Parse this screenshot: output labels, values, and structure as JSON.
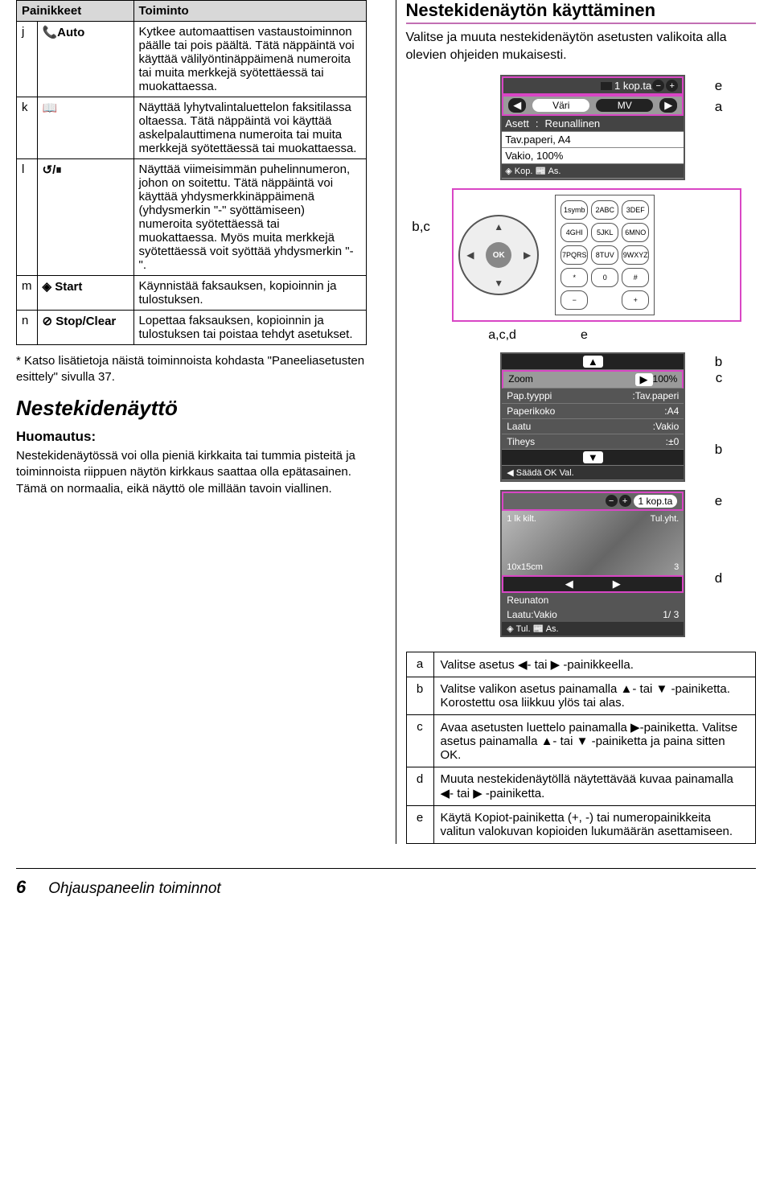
{
  "left_table": {
    "headers": [
      "Painikkeet",
      "Toiminto"
    ],
    "rows": [
      {
        "key": "j",
        "icon": "📞Auto",
        "desc": "Kytkee automaattisen vastaustoiminnon päälle tai pois päältä. Tätä näppäintä voi käyttää välilyöntinäppäimenä numeroita tai muita merkkejä syötettäessä tai muokattaessa."
      },
      {
        "key": "k",
        "icon": "📖",
        "desc": "Näyttää lyhytvalintaluettelon faksitilassa oltaessa. Tätä näppäintä voi käyttää askelpalauttimena numeroita tai muita merkkejä syötettäessä tai muokattaessa."
      },
      {
        "key": "l",
        "icon": "↺/⏸",
        "desc": "Näyttää viimeisimmän puhelinnumeron, johon on soitettu. Tätä näppäintä voi käyttää yhdysmerkkinäppäimenä (yhdysmerkin \"-\" syöttämiseen) numeroita syötettäessä tai muokattaessa. Myös muita merkkejä syötettäessä voit syöttää yhdysmerkin \"-\"."
      },
      {
        "key": "m",
        "icon": "◈ Start",
        "desc": "Käynnistää faksauksen, kopioinnin ja tulostuksen."
      },
      {
        "key": "n",
        "icon": "⊘ Stop/Clear",
        "desc": "Lopettaa faksauksen, kopioinnin ja tulostuksen tai poistaa tehdyt asetukset."
      }
    ]
  },
  "footnote": "* Katso lisätietoja näistä toiminnoista kohdasta \"Paneeliasetusten esittely\" sivulla 37.",
  "section_lcd_title": "Nestekidenäyttö",
  "note_label": "Huomautus:",
  "note_text": "Nestekidenäytössä voi olla pieniä kirkkaita tai tummia pisteitä ja toiminnoista riippuen näytön kirkkaus saattaa olla epätasainen. Tämä on normaalia, eikä näyttö ole millään tavoin viallinen.",
  "right_title": "Nestekidenäytön käyttäminen",
  "right_intro": "Valitse ja muuta nestekidenäytön asetusten valikoita alla olevien ohjeiden mukaisesti.",
  "callouts": {
    "e1": "e",
    "a1": "a",
    "bc": "b,c",
    "acd": "a,c,d",
    "e2": "e",
    "b": "b",
    "c": "c",
    "b2": "b",
    "e3": "e",
    "d": "d"
  },
  "lcd1": {
    "copies": "1 kop.ta",
    "tab_left": "Väri",
    "tab_right": "MV",
    "asett": "Asett",
    "asett_val": "Reunallinen",
    "paper": "Tav.paperi, A4",
    "zoom": "Vakio, 100%",
    "footer": "◈ Kop. 📰 As."
  },
  "keypad": [
    "1symb",
    "2ABC",
    "3DEF",
    "4GHI",
    "5JKL",
    "6MNO",
    "7PQRS",
    "8TUV",
    "9WXYZ",
    "*",
    "0",
    "#"
  ],
  "keypad_extra_left": "−",
  "keypad_extra_right": "+",
  "ok_label": "OK",
  "lcd2": {
    "zoom_lbl": "Zoom",
    "zoom_val": "100%",
    "rows": [
      [
        "Pap.tyyppi",
        "Tav.paperi"
      ],
      [
        "Paperikoko",
        "A4"
      ],
      [
        "Laatu",
        "Vakio"
      ],
      [
        "Tiheys",
        "±0"
      ]
    ],
    "footer": "◀ Säädä OK Val."
  },
  "lcd3": {
    "copies": "1 kop.ta",
    "t1": "1 lk kilt.",
    "t2": "Tul.yht.",
    "t3": "10x15cm",
    "t4": "3",
    "line1": "Reunaton",
    "line2_l": "Laatu:Vakio",
    "line2_r": "1/ 3",
    "footer": "◈ Tul. 📰 As."
  },
  "instructions": [
    {
      "k": "a",
      "t": "Valitse asetus ◀- tai ▶ -painikkeella."
    },
    {
      "k": "b",
      "t": "Valitse valikon asetus painamalla ▲- tai ▼ -painiketta. Korostettu osa liikkuu ylös tai alas."
    },
    {
      "k": "c",
      "t": "Avaa asetusten luettelo painamalla ▶-painiketta. Valitse asetus painamalla ▲- tai ▼ -painiketta ja paina sitten OK."
    },
    {
      "k": "d",
      "t": "Muuta nestekidenäytöllä näytettävää kuvaa painamalla ◀- tai ▶ -painiketta."
    },
    {
      "k": "e",
      "t": "Käytä Kopiot-painiketta (+, -) tai numeropainikkeita valitun valokuvan kopioiden lukumäärän asettamiseen."
    }
  ],
  "footer": {
    "page": "6",
    "title": "Ohjauspaneelin toiminnot"
  }
}
